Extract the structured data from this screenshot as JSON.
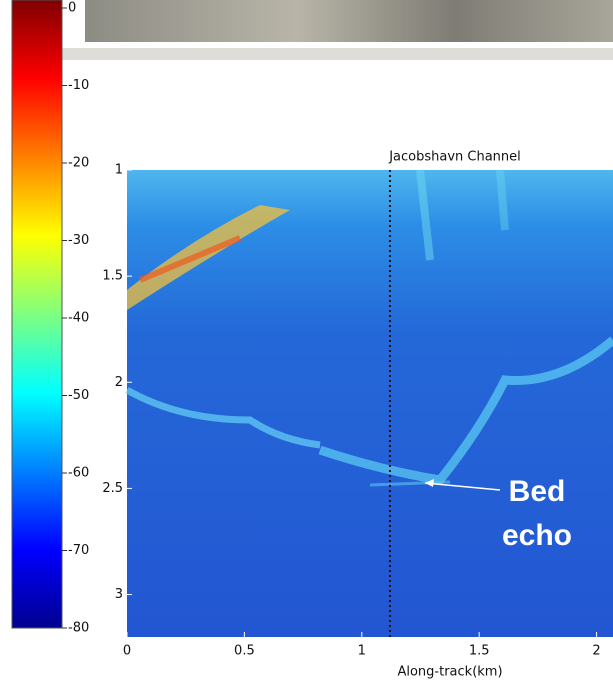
{
  "chart_data": {
    "type": "heatmap",
    "title": "Jacobshavn Channel",
    "x_label": "Along-track(km)",
    "xlim": [
      0,
      2.07
    ],
    "xticks": [
      0,
      0.5,
      1,
      1.5,
      2
    ],
    "ylim": [
      3.2,
      1
    ],
    "yticks": [
      1,
      1.5,
      2,
      2.5,
      3
    ],
    "clim": [
      -80,
      0
    ],
    "cticks": [
      0,
      -10,
      -20,
      -30,
      -40,
      -50,
      -60,
      -70,
      -80
    ],
    "colormap": "jet",
    "marker_x": 1.12,
    "annotation": [
      "Bed",
      "echo"
    ]
  }
}
